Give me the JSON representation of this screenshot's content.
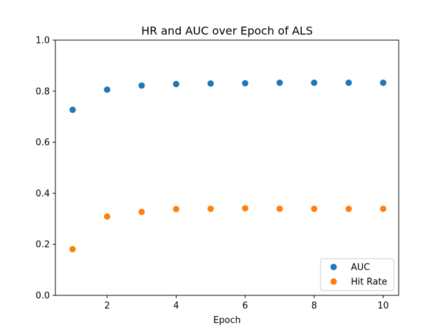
{
  "chart_data": {
    "type": "scatter",
    "title": "HR and AUC over Epoch of ALS",
    "xlabel": "Epoch",
    "ylabel": "",
    "x": [
      1,
      2,
      3,
      4,
      5,
      6,
      7,
      8,
      9,
      10
    ],
    "xlim": [
      0.5,
      10.45
    ],
    "ylim": [
      0.0,
      1.0
    ],
    "xticks": [
      2,
      4,
      6,
      8,
      10
    ],
    "yticks": [
      0.0,
      0.2,
      0.4,
      0.6,
      0.8,
      1.0
    ],
    "xtick_labels": [
      "2",
      "4",
      "6",
      "8",
      "10"
    ],
    "ytick_labels": [
      "0.0",
      "0.2",
      "0.4",
      "0.6",
      "0.8",
      "1.0"
    ],
    "grid": false,
    "legend_position": "lower-right",
    "series": [
      {
        "name": "AUC",
        "color": "#1f77b4",
        "values": [
          0.727,
          0.806,
          0.822,
          0.828,
          0.83,
          0.831,
          0.833,
          0.833,
          0.833,
          0.833
        ]
      },
      {
        "name": "Hit Rate",
        "color": "#ff7f0e",
        "values": [
          0.181,
          0.309,
          0.327,
          0.338,
          0.339,
          0.341,
          0.339,
          0.339,
          0.339,
          0.339
        ]
      }
    ]
  }
}
